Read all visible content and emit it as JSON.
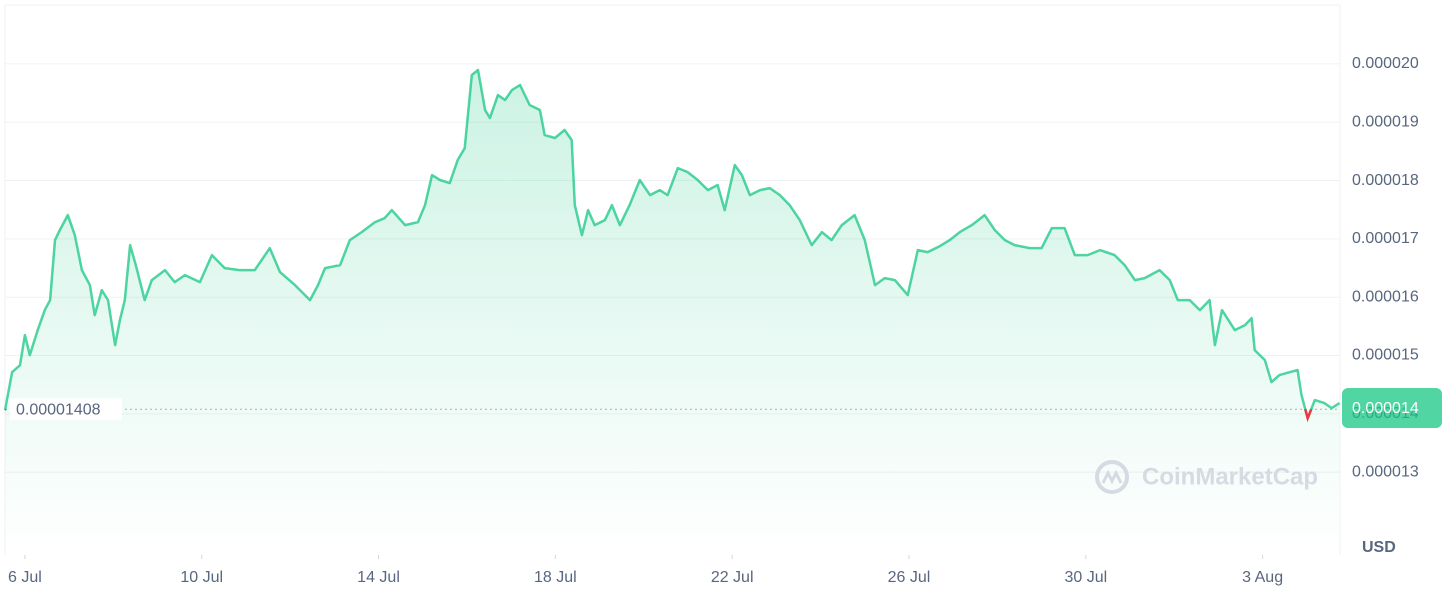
{
  "chart_data": {
    "type": "line",
    "x": [
      -0.45,
      -0.29,
      -0.11,
      0,
      0.11,
      0.29,
      0.45,
      0.57,
      0.68,
      0.79,
      0.97,
      1.13,
      1.29,
      1.47,
      1.58,
      1.74,
      1.88,
      2.04,
      2.15,
      2.26,
      2.38,
      2.51,
      2.71,
      2.87,
      3.17,
      3.39,
      3.62,
      3.96,
      4.23,
      4.52,
      4.86,
      5.2,
      5.54,
      5.77,
      6.11,
      6.45,
      6.63,
      6.79,
      7.13,
      7.35,
      7.62,
      7.92,
      8.14,
      8.3,
      8.6,
      8.89,
      9.05,
      9.21,
      9.39,
      9.61,
      9.79,
      9.95,
      10.11,
      10.25,
      10.41,
      10.52,
      10.7,
      10.86,
      11.02,
      11.2,
      11.42,
      11.65,
      11.76,
      11.99,
      12.21,
      12.37,
      12.44,
      12.6,
      12.74,
      12.89,
      13.12,
      13.28,
      13.46,
      13.68,
      13.91,
      14.14,
      14.36,
      14.54,
      14.77,
      14.99,
      15.22,
      15.45,
      15.67,
      15.83,
      16.06,
      16.22,
      16.4,
      16.63,
      16.85,
      17.08,
      17.3,
      17.53,
      17.8,
      18.03,
      18.25,
      18.48,
      18.77,
      19.0,
      19.23,
      19.45,
      19.68,
      19.97,
      20.2,
      20.42,
      20.7,
      20.92,
      21.15,
      21.42,
      21.71,
      21.94,
      22.17,
      22.39,
      22.73,
      23.0,
      23.23,
      23.52,
      23.75,
      24.04,
      24.32,
      24.65,
      24.88,
      25.11,
      25.33,
      25.67,
      25.9,
      26.08,
      26.35,
      26.58,
      26.8,
      26.92,
      27.08,
      27.37,
      27.6,
      27.75,
      27.82,
      28.05,
      28.2,
      28.38,
      28.61,
      28.79,
      28.88,
      29.02,
      29.18,
      29.4,
      29.56,
      29.74
    ],
    "values": [
      1.4063e-05,
      1.4715e-05,
      1.4835e-05,
      1.535e-05,
      1.5007e-05,
      1.5436e-05,
      1.5779e-05,
      1.595e-05,
      1.6979e-05,
      1.7151e-05,
      1.7408e-05,
      1.7065e-05,
      1.6465e-05,
      1.6208e-05,
      1.5693e-05,
      1.6122e-05,
      1.595e-05,
      1.5178e-05,
      1.5607e-05,
      1.595e-05,
      1.6894e-05,
      1.6551e-05,
      1.595e-05,
      1.6293e-05,
      1.6465e-05,
      1.6259e-05,
      1.6379e-05,
      1.6259e-05,
      1.6722e-05,
      1.6499e-05,
      1.6465e-05,
      1.6465e-05,
      1.6842e-05,
      1.6431e-05,
      1.6208e-05,
      1.595e-05,
      1.6208e-05,
      1.6499e-05,
      1.6551e-05,
      1.6979e-05,
      1.7117e-05,
      1.7288e-05,
      1.7357e-05,
      1.7494e-05,
      1.7237e-05,
      1.7288e-05,
      1.758e-05,
      1.8094e-05,
      1.8009e-05,
      1.7957e-05,
      1.8352e-05,
      1.8557e-05,
      1.981e-05,
      1.9895e-05,
      1.9209e-05,
      1.9072e-05,
      1.9467e-05,
      1.9381e-05,
      1.9552e-05,
      1.9638e-05,
      1.9295e-05,
      1.9209e-05,
      1.878e-05,
      1.8729e-05,
      1.8866e-05,
      1.8695e-05,
      1.758e-05,
      1.7065e-05,
      1.7494e-05,
      1.7237e-05,
      1.7322e-05,
      1.758e-05,
      1.7237e-05,
      1.758e-05,
      1.8009e-05,
      1.7751e-05,
      1.7837e-05,
      1.7751e-05,
      1.8214e-05,
      1.8146e-05,
      1.8009e-05,
      1.7837e-05,
      1.7923e-05,
      1.7494e-05,
      1.8266e-05,
      1.8094e-05,
      1.7751e-05,
      1.7837e-05,
      1.7871e-05,
      1.7751e-05,
      1.758e-05,
      1.7322e-05,
      1.6894e-05,
      1.7117e-05,
      1.6979e-05,
      1.7237e-05,
      1.7408e-05,
      1.6979e-05,
      1.6208e-05,
      1.6328e-05,
      1.6293e-05,
      1.6036e-05,
      1.6808e-05,
      1.6774e-05,
      1.6877e-05,
      1.6979e-05,
      1.7117e-05,
      1.7237e-05,
      1.7408e-05,
      1.7151e-05,
      1.6979e-05,
      1.6894e-05,
      1.6842e-05,
      1.6842e-05,
      1.7185e-05,
      1.7185e-05,
      1.6722e-05,
      1.6722e-05,
      1.6808e-05,
      1.6722e-05,
      1.6551e-05,
      1.6293e-05,
      1.6328e-05,
      1.6465e-05,
      1.6293e-05,
      1.595e-05,
      1.595e-05,
      1.5779e-05,
      1.595e-05,
      1.5178e-05,
      1.5779e-05,
      1.5436e-05,
      1.5521e-05,
      1.5642e-05,
      1.5093e-05,
      1.4921e-05,
      1.4544e-05,
      1.4664e-05,
      1.4715e-05,
      1.475e-05,
      1.4321e-05,
      1.3926e-05,
      1.4235e-05,
      1.4184e-05,
      1.4098e-05,
      1.4184e-05
    ],
    "color": "#16c784",
    "below_color": "#ea3943",
    "xlim": [
      -0.45,
      29.75
    ],
    "xticks": [
      {
        "value": 0,
        "label": "6 Jul"
      },
      {
        "value": 4,
        "label": "10 Jul"
      },
      {
        "value": 8,
        "label": "14 Jul"
      },
      {
        "value": 12,
        "label": "18 Jul"
      },
      {
        "value": 16,
        "label": "22 Jul"
      },
      {
        "value": 20,
        "label": "26 Jul"
      },
      {
        "value": 24,
        "label": "30 Jul"
      },
      {
        "value": 28,
        "label": "3 Aug"
      }
    ],
    "ylim": [
      1.158e-05,
      2.101e-05
    ],
    "yticks": [
      {
        "value": 1.3e-05,
        "label": "0.000013"
      },
      {
        "value": 1.4e-05,
        "label": "0.000014"
      },
      {
        "value": 1.5e-05,
        "label": "0.000015"
      },
      {
        "value": 1.6e-05,
        "label": "0.000016"
      },
      {
        "value": 1.7e-05,
        "label": "0.000017"
      },
      {
        "value": 1.8e-05,
        "label": "0.000018"
      },
      {
        "value": 1.9e-05,
        "label": "0.000019"
      },
      {
        "value": 2e-05,
        "label": "0.000020"
      }
    ],
    "grid": true,
    "reference_line": {
      "value": 1.408e-05,
      "label": "0.00001408"
    },
    "current_price": {
      "value": 1.41e-05,
      "label": "0.000014"
    },
    "currency": "USD",
    "watermark": "CoinMarketCap"
  }
}
